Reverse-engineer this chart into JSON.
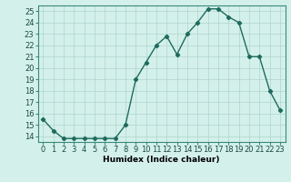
{
  "x": [
    0,
    1,
    2,
    3,
    4,
    5,
    6,
    7,
    8,
    9,
    10,
    11,
    12,
    13,
    14,
    15,
    16,
    17,
    18,
    19,
    20,
    21,
    22,
    23
  ],
  "y": [
    15.5,
    14.5,
    13.8,
    13.8,
    13.8,
    13.8,
    13.8,
    13.8,
    15.0,
    19.0,
    20.5,
    22.0,
    22.8,
    21.2,
    23.0,
    24.0,
    25.2,
    25.2,
    24.5,
    24.0,
    21.0,
    21.0,
    18.0,
    16.3
  ],
  "line_color": "#1e6b5e",
  "marker": "D",
  "marker_size": 2.2,
  "bg_color": "#d4f0eb",
  "grid_color": "#afd4ce",
  "xlabel": "Humidex (Indice chaleur)",
  "xlim": [
    -0.5,
    23.5
  ],
  "ylim": [
    13.5,
    25.5
  ],
  "yticks": [
    14,
    15,
    16,
    17,
    18,
    19,
    20,
    21,
    22,
    23,
    24,
    25
  ],
  "xticks": [
    0,
    1,
    2,
    3,
    4,
    5,
    6,
    7,
    8,
    9,
    10,
    11,
    12,
    13,
    14,
    15,
    16,
    17,
    18,
    19,
    20,
    21,
    22,
    23
  ],
  "xlabel_fontsize": 6.5,
  "tick_fontsize": 6.0,
  "line_width": 1.0
}
